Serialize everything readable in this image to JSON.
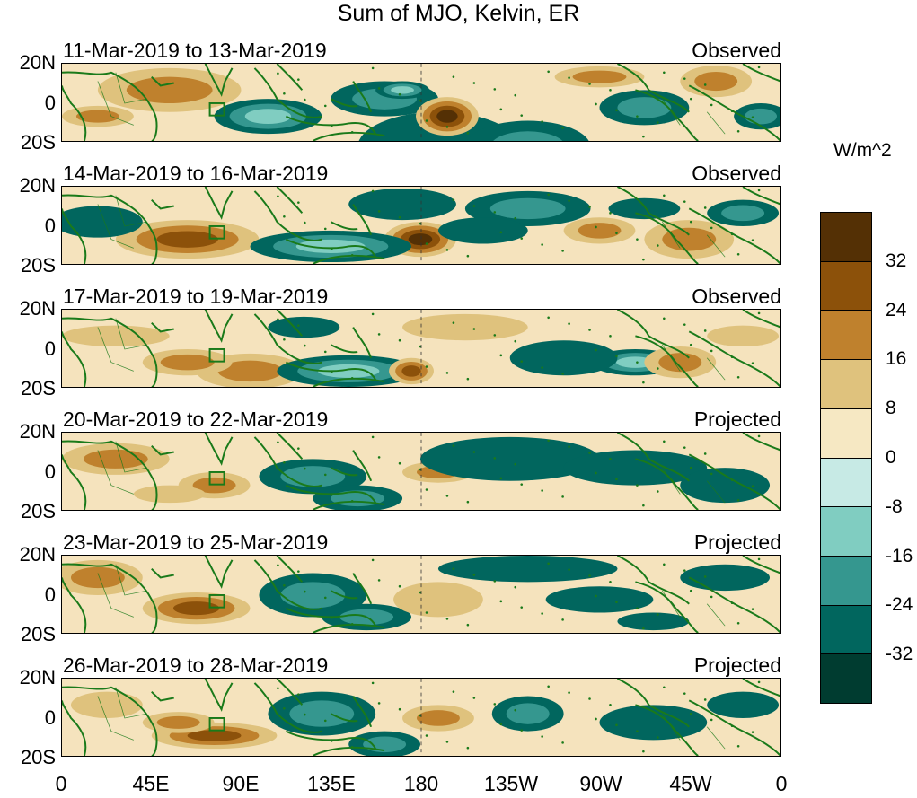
{
  "title": "Sum of MJO, Kelvin, ER",
  "panels": [
    {
      "date_range": "11-Mar-2019 to 13-Mar-2019",
      "status": "Observed"
    },
    {
      "date_range": "14-Mar-2019 to 16-Mar-2019",
      "status": "Observed"
    },
    {
      "date_range": "17-Mar-2019 to 19-Mar-2019",
      "status": "Observed"
    },
    {
      "date_range": "20-Mar-2019 to 22-Mar-2019",
      "status": "Projected"
    },
    {
      "date_range": "23-Mar-2019 to 25-Mar-2019",
      "status": "Projected"
    },
    {
      "date_range": "26-Mar-2019 to 28-Mar-2019",
      "status": "Projected"
    }
  ],
  "lat_labels": [
    "20N",
    "0",
    "20S"
  ],
  "lon_labels": [
    "0",
    "45E",
    "90E",
    "135E",
    "180",
    "135W",
    "90W",
    "45W",
    "0"
  ],
  "colorbar": {
    "units": "W/m^2",
    "tick_labels": [
      "32",
      "24",
      "16",
      "8",
      "0",
      "-8",
      "-16",
      "-24",
      "-32"
    ],
    "colors": [
      "#543005",
      "#8c510a",
      "#bf812d",
      "#dfc27d",
      "#f6e8c3",
      "#c7eae5",
      "#80cdc1",
      "#35978f",
      "#01665e",
      "#003c30"
    ]
  },
  "colors": {
    "coastline": "#1a7a1a",
    "frame": "#000000"
  }
}
